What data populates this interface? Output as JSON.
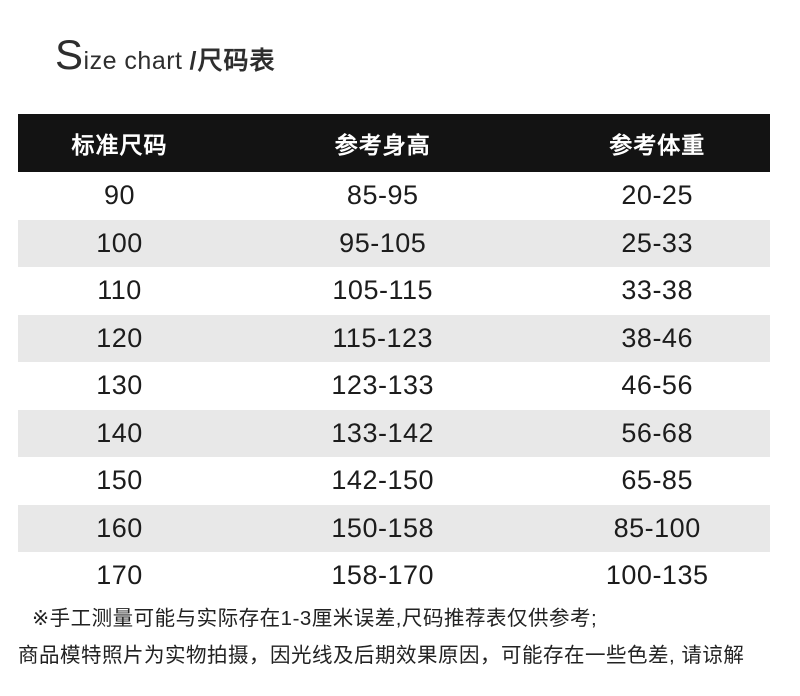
{
  "title": {
    "en_initial": "S",
    "en_rest": "ize chart",
    "zh_part": "/尺码表"
  },
  "table": {
    "headers": [
      "标准尺码",
      "参考身高",
      "参考体重"
    ],
    "rows": [
      [
        "90",
        "85-95",
        "20-25"
      ],
      [
        "100",
        "95-105",
        "25-33"
      ],
      [
        "110",
        "105-115",
        "33-38"
      ],
      [
        "120",
        "115-123",
        "38-46"
      ],
      [
        "130",
        "123-133",
        "46-56"
      ],
      [
        "140",
        "133-142",
        "56-68"
      ],
      [
        "150",
        "142-150",
        "65-85"
      ],
      [
        "160",
        "150-158",
        "85-100"
      ],
      [
        "170",
        "158-170",
        "100-135"
      ]
    ]
  },
  "footnotes": [
    "※手工测量可能与实际存在1-3厘米误差,尺码推荐表仅供参考;",
    "商品模特照片为实物拍摄，因光线及后期效果原因，可能存在一些色差, 请谅解"
  ],
  "colors": {
    "header_bg": "#131313",
    "header_text": "#ffffff",
    "row_alt_bg": "#e8e8e8",
    "body_text": "#1c1c1c"
  }
}
